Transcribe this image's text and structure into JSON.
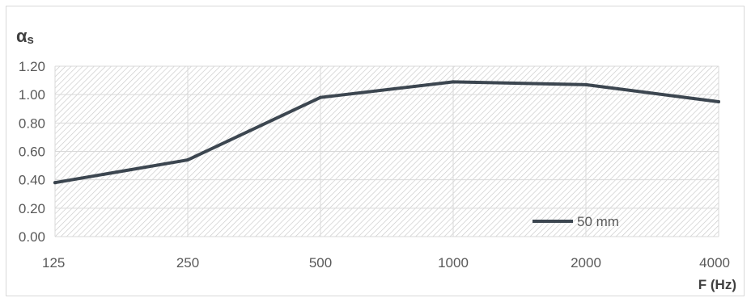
{
  "chart_data": {
    "type": "line",
    "categories": [
      "125",
      "250",
      "500",
      "1000",
      "2000",
      "4000"
    ],
    "series": [
      {
        "name": "50 mm",
        "values": [
          0.38,
          0.54,
          0.98,
          1.09,
          1.07,
          0.95
        ],
        "color": "#3c4650"
      }
    ],
    "y_ticks": [
      "0.00",
      "0.20",
      "0.40",
      "0.60",
      "0.80",
      "1.00",
      "1.20"
    ],
    "ylim": [
      0,
      1.2
    ],
    "ylabel": "αs",
    "xlabel": "F (Hz)",
    "grid": true,
    "legend_position": "bottom-right",
    "colors": {
      "line": "#3c4650",
      "grid": "#d9d9d9",
      "hatch": "#c8c8c8",
      "text": "#595959"
    }
  }
}
